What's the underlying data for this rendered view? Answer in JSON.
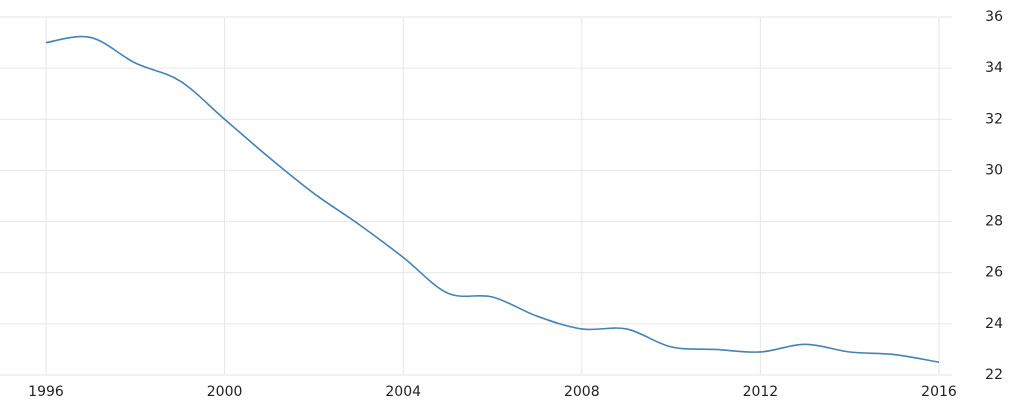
{
  "chart_data": {
    "type": "line",
    "x": [
      1996,
      1997,
      1998,
      1999,
      2000,
      2001,
      2002,
      2003,
      2004,
      2005,
      2006,
      2007,
      2008,
      2009,
      2010,
      2011,
      2012,
      2013,
      2014,
      2015,
      2016
    ],
    "series": [
      {
        "color": "#4682b4",
        "values": [
          35.0,
          35.2,
          34.2,
          33.5,
          32.0,
          30.5,
          29.1,
          27.9,
          26.6,
          25.2,
          25.05,
          24.3,
          23.8,
          23.8,
          23.1,
          23.0,
          22.9,
          23.2,
          22.9,
          22.8,
          22.5
        ]
      }
    ],
    "xlim": [
      1996,
      2016
    ],
    "xticks": [
      1996,
      2000,
      2004,
      2008,
      2012,
      2016
    ],
    "ylim": [
      22,
      36
    ],
    "yticks": [
      22,
      24,
      26,
      28,
      30,
      32,
      34,
      36
    ],
    "grid": true
  }
}
